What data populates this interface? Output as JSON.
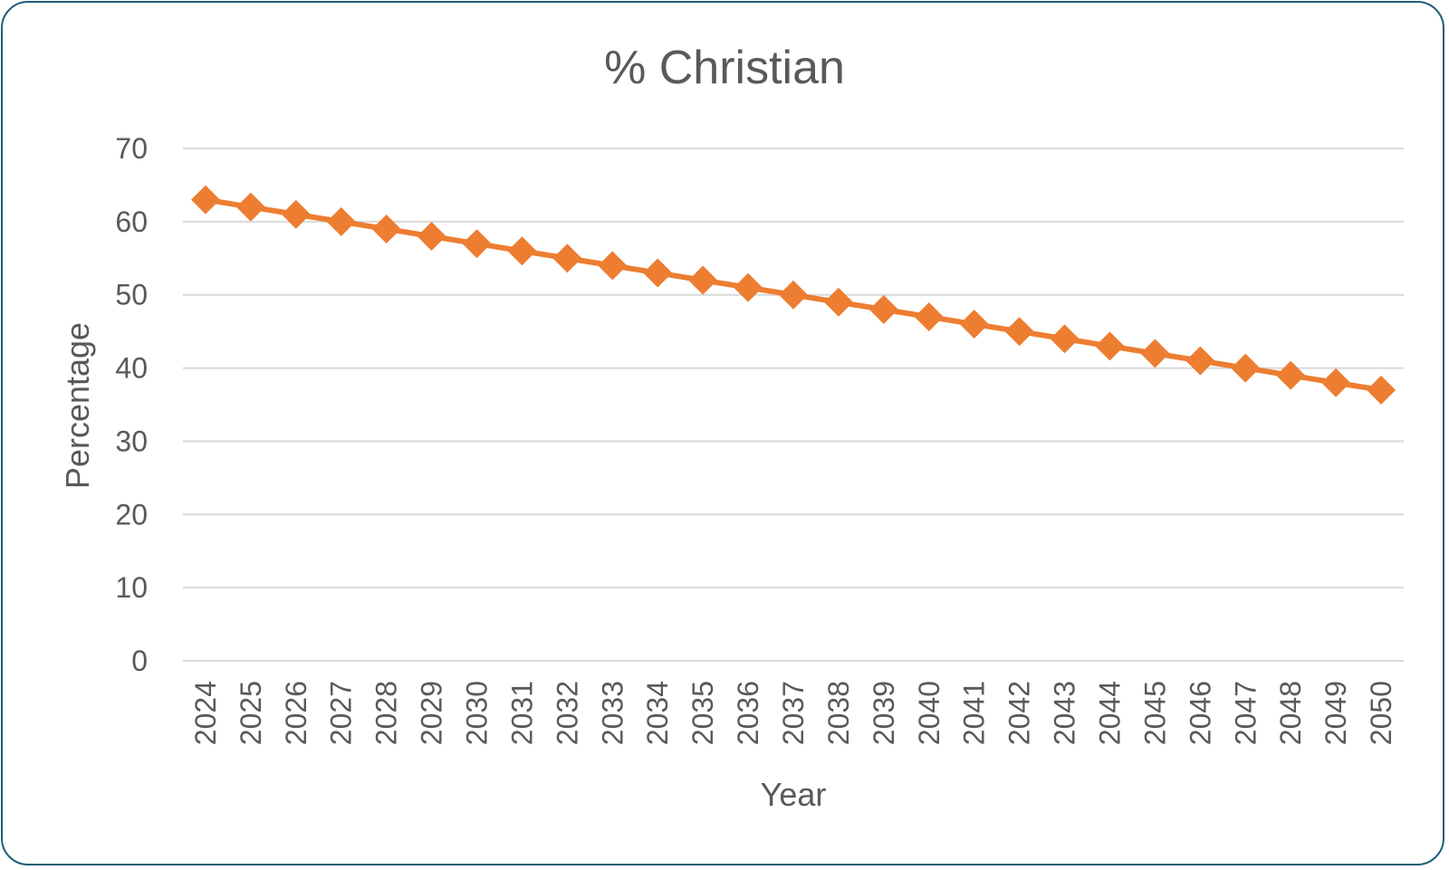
{
  "chart_data": {
    "type": "line",
    "title": "% Christian",
    "xlabel": "Year",
    "ylabel": "Percentage",
    "x": [
      "2024",
      "2025",
      "2026",
      "2027",
      "2028",
      "2029",
      "2030",
      "2031",
      "2032",
      "2033",
      "2034",
      "2035",
      "2036",
      "2037",
      "2038",
      "2039",
      "2040",
      "2041",
      "2042",
      "2043",
      "2044",
      "2045",
      "2046",
      "2047",
      "2048",
      "2049",
      "2050"
    ],
    "series": [
      {
        "values": [
          63,
          62,
          61,
          60,
          59,
          58,
          57,
          56,
          55,
          54,
          53,
          52,
          51,
          50,
          49,
          48,
          47,
          46,
          45,
          44,
          43,
          42,
          41,
          40,
          39,
          38,
          37
        ],
        "color": "#ed7d31",
        "marker": "diamond"
      }
    ],
    "ylim": [
      0,
      70
    ],
    "yticks": [
      "0",
      "10",
      "20",
      "30",
      "40",
      "50",
      "60",
      "70"
    ],
    "grid": true,
    "legend": "none"
  }
}
